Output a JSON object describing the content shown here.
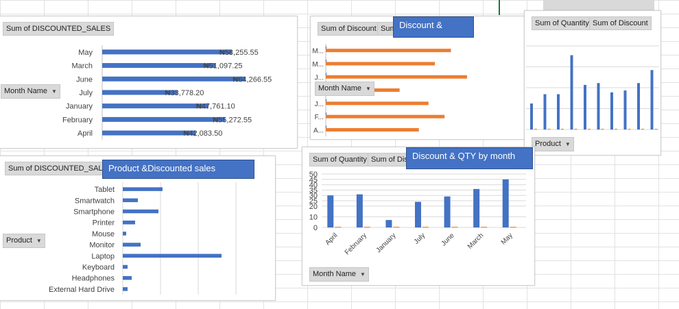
{
  "colors": {
    "blue": "#4472c4",
    "orange": "#ed7d31"
  },
  "chart1": {
    "field_value": "Sum of DISCOUNTED_SALES",
    "field_axis": "Month Name",
    "chart_data": {
      "type": "bar",
      "orientation": "horizontal",
      "categories": [
        "May",
        "March",
        "June",
        "July",
        "January",
        "February",
        "April"
      ],
      "values": [
        58255.55,
        51097.25,
        64266.55,
        33778.2,
        47761.1,
        55272.55,
        42083.5
      ],
      "data_labels": [
        "₦58,255.55",
        "₦51,097.25",
        "₦64,266.55",
        "₦33,778.20",
        "₦47,761.10",
        "₦55,272.55",
        "₦42,083.50"
      ],
      "xlim": [
        0,
        70000
      ]
    }
  },
  "chart2": {
    "field_value1": "Sum of Discount",
    "field_value2": "Sum of Quantity",
    "field_axis": "Month Name",
    "title": "Discount &",
    "chart_data": {
      "type": "bar",
      "orientation": "horizontal",
      "categories": [
        "M...",
        "M...",
        "J...",
        "J...",
        "J...",
        "F...",
        "A..."
      ],
      "series": [
        {
          "values": [
            0.25,
            0.25,
            0.25,
            0.25,
            0.25,
            0.25,
            0.25
          ]
        },
        {
          "values": [
            780,
            680,
            880,
            460,
            640,
            740,
            580
          ]
        }
      ],
      "xlim": [
        0,
        1000
      ]
    }
  },
  "chart3": {
    "field_value1": "Sum of Quantity",
    "field_value2": "Sum of Discount",
    "field_axis": "Product",
    "chart_data": {
      "type": "bar",
      "series": [
        {
          "values": [
            14,
            19,
            19,
            40,
            24,
            25,
            20,
            21,
            25,
            32
          ]
        },
        {
          "values": [
            0.3,
            0.3,
            0.3,
            0.3,
            0.3,
            0.3,
            0.3,
            0.3,
            0.3,
            0.3
          ]
        }
      ],
      "ylim": [
        0,
        45
      ]
    }
  },
  "chart4": {
    "field_value": "Sum of DISCOUNTED_SALES",
    "field_axis": "Product",
    "title": "Product &Discounted sales",
    "chart_data": {
      "type": "bar",
      "orientation": "horizontal",
      "categories": [
        "Tablet",
        "Smartwatch",
        "Smartphone",
        "Printer",
        "Mouse",
        "Monitor",
        "Laptop",
        "Keyboard",
        "Headphones",
        "External Hard Drive"
      ],
      "values": [
        29000,
        11000,
        26000,
        9000,
        2500,
        13000,
        72000,
        3500,
        6500,
        3500
      ],
      "xlim": [
        0,
        110000
      ]
    }
  },
  "chart5": {
    "field_value1": "Sum of Quantity",
    "field_value2": "Sum of Discount",
    "field_axis": "Month Name",
    "title": "Discount & QTY by month",
    "chart_data": {
      "type": "bar",
      "categories": [
        "April",
        "February",
        "January",
        "July",
        "June",
        "March",
        "May"
      ],
      "series": [
        {
          "values": [
            30,
            31,
            7,
            24,
            29,
            36,
            45
          ]
        },
        {
          "values": [
            0.3,
            0.3,
            0.3,
            0.3,
            0.3,
            0.3,
            0.3
          ]
        }
      ],
      "ylim": [
        0,
        50
      ],
      "yticks": [
        "0",
        "10",
        "20",
        "25",
        "30",
        "35",
        "40",
        "45",
        "50"
      ],
      "ytick_values": [
        0,
        10,
        20,
        25,
        30,
        35,
        40,
        45,
        50
      ],
      "grid": true
    }
  }
}
